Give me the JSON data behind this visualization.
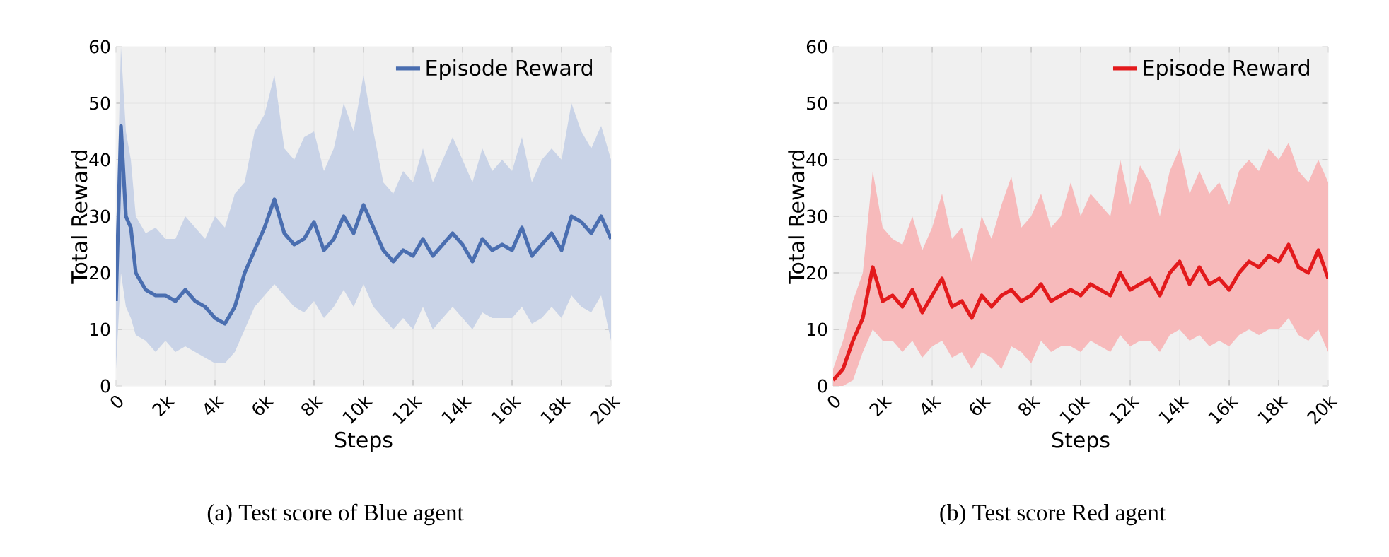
{
  "chart_data": [
    {
      "type": "line",
      "xlabel": "Steps",
      "ylabel": "Total Reward",
      "annotations": [
        "(a) Test score of Blue agent"
      ],
      "xlim": [
        0,
        20000
      ],
      "ylim": [
        0,
        60
      ],
      "xticks": [
        0,
        {
          "value": 2000,
          "label": "2k"
        },
        {
          "value": 4000,
          "label": "4k"
        },
        {
          "value": 6000,
          "label": "6k"
        },
        {
          "value": 8000,
          "label": "8k"
        },
        {
          "value": 10000,
          "label": "10k"
        },
        {
          "value": 12000,
          "label": "12k"
        },
        {
          "value": 14000,
          "label": "14k"
        },
        {
          "value": 16000,
          "label": "16k"
        },
        {
          "value": 18000,
          "label": "18k"
        },
        {
          "value": 20000,
          "label": "20k"
        }
      ],
      "yticks": [
        0,
        10,
        20,
        30,
        40,
        50,
        60
      ],
      "grid": true,
      "legend": "top right",
      "marker": "none",
      "line_style": "solid",
      "x": [
        0,
        200,
        400,
        600,
        800,
        1200,
        1600,
        2000,
        2400,
        2800,
        3200,
        3600,
        4000,
        4400,
        4800,
        5200,
        5600,
        6000,
        6400,
        6800,
        7200,
        7600,
        8000,
        8400,
        8800,
        9200,
        9600,
        10000,
        10400,
        10800,
        11200,
        11600,
        12000,
        12400,
        12800,
        13200,
        13600,
        14000,
        14400,
        14800,
        15200,
        15600,
        16000,
        16400,
        16800,
        17200,
        17600,
        18000,
        18400,
        18800,
        19200,
        19600,
        20000
      ],
      "series": [
        {
          "name": "Episode Reward",
          "color": "#4a6eb0",
          "values": [
            15,
            46,
            30,
            28,
            20,
            17,
            16,
            16,
            15,
            17,
            15,
            14,
            12,
            11,
            14,
            20,
            24,
            28,
            33,
            27,
            25,
            26,
            29,
            24,
            26,
            30,
            27,
            32,
            28,
            24,
            22,
            24,
            23,
            26,
            23,
            25,
            27,
            25,
            22,
            26,
            24,
            25,
            24,
            28,
            23,
            25,
            27,
            24,
            30,
            29,
            27,
            30,
            26
          ],
          "lower": [
            3,
            20,
            14,
            12,
            9,
            8,
            6,
            8,
            6,
            7,
            6,
            5,
            4,
            4,
            6,
            10,
            14,
            16,
            18,
            16,
            14,
            13,
            15,
            12,
            14,
            17,
            14,
            18,
            14,
            12,
            10,
            12,
            10,
            14,
            10,
            12,
            14,
            12,
            10,
            13,
            12,
            12,
            12,
            14,
            11,
            12,
            14,
            12,
            16,
            14,
            13,
            16,
            8
          ],
          "upper": [
            25,
            60,
            45,
            40,
            30,
            27,
            28,
            26,
            26,
            30,
            28,
            26,
            30,
            28,
            34,
            36,
            45,
            48,
            55,
            42,
            40,
            44,
            45,
            38,
            42,
            50,
            45,
            55,
            45,
            36,
            34,
            38,
            36,
            42,
            36,
            40,
            44,
            40,
            36,
            42,
            38,
            40,
            38,
            44,
            36,
            40,
            42,
            40,
            50,
            45,
            42,
            46,
            40
          ]
        }
      ]
    },
    {
      "type": "line",
      "xlabel": "Steps",
      "ylabel": "Total Reward",
      "annotations": [
        "(b) Test score Red agent"
      ],
      "xlim": [
        0,
        20000
      ],
      "ylim": [
        0,
        60
      ],
      "xticks": [
        0,
        {
          "value": 2000,
          "label": "2k"
        },
        {
          "value": 4000,
          "label": "4k"
        },
        {
          "value": 6000,
          "label": "6k"
        },
        {
          "value": 8000,
          "label": "8k"
        },
        {
          "value": 10000,
          "label": "10k"
        },
        {
          "value": 12000,
          "label": "12k"
        },
        {
          "value": 14000,
          "label": "14k"
        },
        {
          "value": 16000,
          "label": "16k"
        },
        {
          "value": 18000,
          "label": "18k"
        },
        {
          "value": 20000,
          "label": "20k"
        }
      ],
      "yticks": [
        0,
        10,
        20,
        30,
        40,
        50,
        60
      ],
      "grid": true,
      "legend": "top right",
      "marker": "none",
      "line_style": "solid",
      "x": [
        0,
        400,
        800,
        1200,
        1600,
        2000,
        2400,
        2800,
        3200,
        3600,
        4000,
        4400,
        4800,
        5200,
        5600,
        6000,
        6400,
        6800,
        7200,
        7600,
        8000,
        8400,
        8800,
        9200,
        9600,
        10000,
        10400,
        10800,
        11200,
        11600,
        12000,
        12400,
        12800,
        13200,
        13600,
        14000,
        14400,
        14800,
        15200,
        15600,
        16000,
        16400,
        16800,
        17200,
        17600,
        18000,
        18400,
        18800,
        19200,
        19600,
        20000
      ],
      "series": [
        {
          "name": "Episode Reward",
          "color": "#e31a1c",
          "values": [
            1,
            3,
            8,
            12,
            21,
            15,
            16,
            14,
            17,
            13,
            16,
            19,
            14,
            15,
            12,
            16,
            14,
            16,
            17,
            15,
            16,
            18,
            15,
            16,
            17,
            16,
            18,
            17,
            16,
            20,
            17,
            18,
            19,
            16,
            20,
            22,
            18,
            21,
            18,
            19,
            17,
            20,
            22,
            21,
            23,
            22,
            25,
            21,
            20,
            24,
            19
          ],
          "lower": [
            0,
            0,
            1,
            6,
            10,
            8,
            8,
            6,
            8,
            5,
            7,
            8,
            5,
            6,
            3,
            6,
            5,
            3,
            7,
            6,
            4,
            8,
            6,
            7,
            7,
            6,
            8,
            7,
            6,
            9,
            7,
            8,
            8,
            6,
            9,
            10,
            8,
            9,
            7,
            8,
            7,
            9,
            10,
            9,
            10,
            10,
            12,
            9,
            8,
            10,
            6
          ],
          "upper": [
            3,
            8,
            15,
            20,
            38,
            28,
            26,
            25,
            30,
            24,
            28,
            34,
            26,
            28,
            22,
            30,
            26,
            32,
            37,
            28,
            30,
            34,
            28,
            30,
            36,
            30,
            34,
            32,
            30,
            40,
            32,
            39,
            36,
            30,
            38,
            42,
            34,
            38,
            34,
            36,
            32,
            38,
            40,
            38,
            42,
            40,
            43,
            38,
            36,
            40,
            36
          ]
        }
      ]
    }
  ]
}
